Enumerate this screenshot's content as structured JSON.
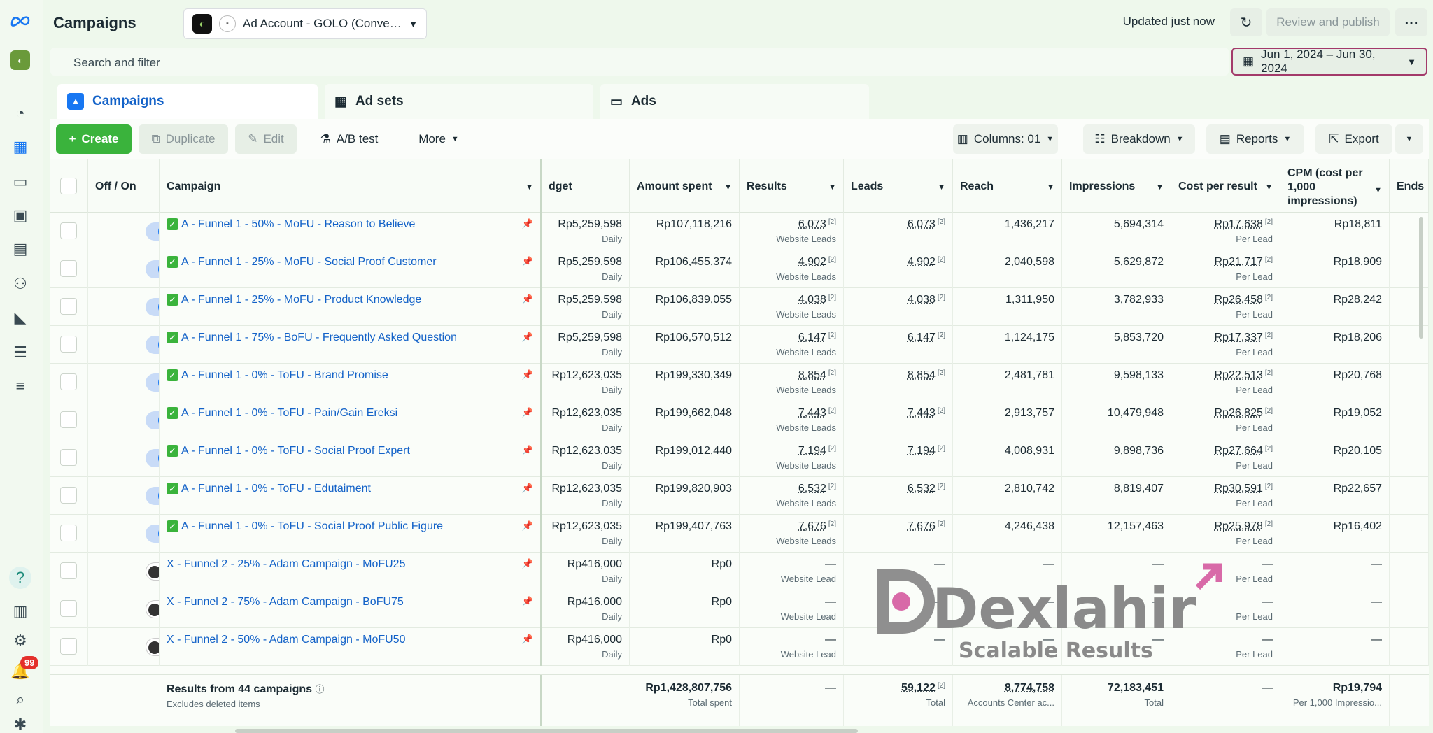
{
  "header": {
    "title": "Campaigns",
    "account_label": "Ad Account - GOLO (Conve…",
    "updated_text": "Updated just now",
    "review_publish_label": "Review and publish",
    "more_icon": "⋯"
  },
  "search": {
    "placeholder": "Search and filter"
  },
  "date_range": "Jun 1, 2024 – Jun 30, 2024",
  "tabs": [
    {
      "label": "Campaigns"
    },
    {
      "label": "Ad sets"
    },
    {
      "label": "Ads"
    }
  ],
  "toolbar": {
    "create": "Create",
    "duplicate": "Duplicate",
    "edit": "Edit",
    "ab_test": "A/B test",
    "more": "More",
    "columns": "Columns: 01",
    "breakdown": "Breakdown",
    "reports": "Reports",
    "export": "Export"
  },
  "columns": {
    "off_on": "Off / On",
    "campaign": "Campaign",
    "budget": "dget",
    "amount_spent": "Amount spent",
    "results": "Results",
    "leads": "Leads",
    "reach": "Reach",
    "impressions": "Impressions",
    "cost_per_result": "Cost per result",
    "cpm": "CPM (cost per 1,000 impressions)",
    "ends": "Ends"
  },
  "rows": [
    {
      "on": true,
      "name": "A - Funnel 1 - 50% - MoFU - Reason to Believe",
      "budget": "Rp5,259,598",
      "budget_sub": "Daily",
      "spent": "Rp107,118,216",
      "results": "6,073",
      "results_sub": "Website Leads",
      "leads": "6,073",
      "reach": "1,436,217",
      "impressions": "5,694,314",
      "cpr": "Rp17,638",
      "cpr_sub": "Per Lead",
      "cpm": "Rp18,811",
      "marker": "✓"
    },
    {
      "on": true,
      "name": "A - Funnel 1 - 25% - MoFU - Social Proof Customer",
      "budget": "Rp5,259,598",
      "budget_sub": "Daily",
      "spent": "Rp106,455,374",
      "results": "4,902",
      "results_sub": "Website Leads",
      "leads": "4,902",
      "reach": "2,040,598",
      "impressions": "5,629,872",
      "cpr": "Rp21,717",
      "cpr_sub": "Per Lead",
      "cpm": "Rp18,909",
      "marker": "✓"
    },
    {
      "on": true,
      "name": "A - Funnel 1 - 25% - MoFU - Product Knowledge",
      "budget": "Rp5,259,598",
      "budget_sub": "Daily",
      "spent": "Rp106,839,055",
      "results": "4,038",
      "results_sub": "Website Leads",
      "leads": "4,038",
      "reach": "1,311,950",
      "impressions": "3,782,933",
      "cpr": "Rp26,458",
      "cpr_sub": "Per Lead",
      "cpm": "Rp28,242",
      "marker": "✓"
    },
    {
      "on": true,
      "name": "A - Funnel 1 - 75% - BoFU - Frequently Asked Question",
      "budget": "Rp5,259,598",
      "budget_sub": "Daily",
      "spent": "Rp106,570,512",
      "results": "6,147",
      "results_sub": "Website Leads",
      "leads": "6,147",
      "reach": "1,124,175",
      "impressions": "5,853,720",
      "cpr": "Rp17,337",
      "cpr_sub": "Per Lead",
      "cpm": "Rp18,206",
      "marker": "✓"
    },
    {
      "on": true,
      "name": "A - Funnel 1 - 0% - ToFU - Brand Promise",
      "budget": "Rp12,623,035",
      "budget_sub": "Daily",
      "spent": "Rp199,330,349",
      "results": "8,854",
      "results_sub": "Website Leads",
      "leads": "8,854",
      "reach": "2,481,781",
      "impressions": "9,598,133",
      "cpr": "Rp22,513",
      "cpr_sub": "Per Lead",
      "cpm": "Rp20,768",
      "marker": "✓"
    },
    {
      "on": true,
      "name": "A - Funnel 1 - 0% - ToFU - Pain/Gain Ereksi",
      "budget": "Rp12,623,035",
      "budget_sub": "Daily",
      "spent": "Rp199,662,048",
      "results": "7,443",
      "results_sub": "Website Leads",
      "leads": "7,443",
      "reach": "2,913,757",
      "impressions": "10,479,948",
      "cpr": "Rp26,825",
      "cpr_sub": "Per Lead",
      "cpm": "Rp19,052",
      "marker": "✓"
    },
    {
      "on": true,
      "name": "A - Funnel 1 - 0% - ToFU - Social Proof Expert",
      "budget": "Rp12,623,035",
      "budget_sub": "Daily",
      "spent": "Rp199,012,440",
      "results": "7,194",
      "results_sub": "Website Leads",
      "leads": "7,194",
      "reach": "4,008,931",
      "impressions": "9,898,736",
      "cpr": "Rp27,664",
      "cpr_sub": "Per Lead",
      "cpm": "Rp20,105",
      "marker": "✓"
    },
    {
      "on": true,
      "name": "A - Funnel 1 - 0% - ToFU - Edutaiment",
      "budget": "Rp12,623,035",
      "budget_sub": "Daily",
      "spent": "Rp199,820,903",
      "results": "6,532",
      "results_sub": "Website Leads",
      "leads": "6,532",
      "reach": "2,810,742",
      "impressions": "8,819,407",
      "cpr": "Rp30,591",
      "cpr_sub": "Per Lead",
      "cpm": "Rp22,657",
      "marker": "✓"
    },
    {
      "on": true,
      "name": "A - Funnel 1 - 0% - ToFU - Social Proof Public Figure",
      "budget": "Rp12,623,035",
      "budget_sub": "Daily",
      "spent": "Rp199,407,763",
      "results": "7,676",
      "results_sub": "Website Leads",
      "leads": "7,676",
      "reach": "4,246,438",
      "impressions": "12,157,463",
      "cpr": "Rp25,978",
      "cpr_sub": "Per Lead",
      "cpm": "Rp16,402",
      "marker": "✓"
    },
    {
      "on": false,
      "name": "X - Funnel 2 - 25% - Adam Campaign - MoFU25",
      "budget": "Rp416,000",
      "budget_sub": "Daily",
      "spent": "Rp0",
      "results": "—",
      "results_sub": "Website Lead",
      "leads": "—",
      "reach": "—",
      "impressions": "—",
      "cpr": "—",
      "cpr_sub": "Per Lead",
      "cpm": "—",
      "marker": ""
    },
    {
      "on": false,
      "name": "X - Funnel 2 - 75% - Adam Campaign - BoFU75",
      "budget": "Rp416,000",
      "budget_sub": "Daily",
      "spent": "Rp0",
      "results": "—",
      "results_sub": "Website Lead",
      "leads": "—",
      "reach": "—",
      "impressions": "—",
      "cpr": "—",
      "cpr_sub": "Per Lead",
      "cpm": "—",
      "marker": ""
    },
    {
      "on": false,
      "name": "X - Funnel 2 - 50% - Adam Campaign - MoFU50",
      "budget": "Rp416,000",
      "budget_sub": "Daily",
      "spent": "Rp0",
      "results": "—",
      "results_sub": "Website Lead",
      "leads": "—",
      "reach": "—",
      "impressions": "—",
      "cpr": "—",
      "cpr_sub": "Per Lead",
      "cpm": "—",
      "marker": ""
    }
  ],
  "footer": {
    "title": "Results from 44 campaigns",
    "sub": "Excludes deleted items",
    "dash": "—",
    "spent": "Rp1,428,807,756",
    "spent_sub": "Total spent",
    "leads": "59,122",
    "leads_sub": "Total",
    "reach": "8,774,758",
    "reach_sub": "Accounts Center ac...",
    "impressions": "72,183,451",
    "impressions_sub": "Total",
    "cpm": "Rp19,794",
    "cpm_sub": "Per 1,000 Impressio..."
  },
  "notifications_count": "99",
  "watermark": {
    "brand": "Dexlahir",
    "tagline": "Scalable Results"
  },
  "colors": {
    "accent": "#1877f2",
    "create_green": "#3ab33c",
    "link": "#1362c8",
    "badge_red": "#e4302b"
  }
}
